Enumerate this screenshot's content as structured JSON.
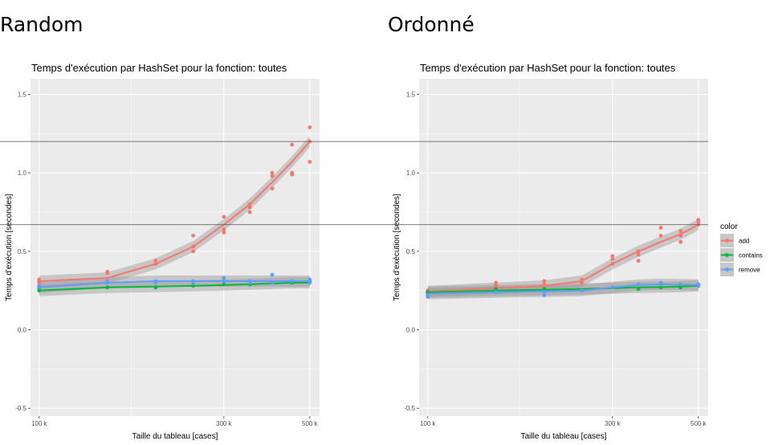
{
  "headings": {
    "left": "Random",
    "right": "Ordonné"
  },
  "colors": {
    "add": "#F8766D",
    "contains": "#00BA38",
    "remove": "#619CFF",
    "panel": "#EBEBEB",
    "grid": "#FFFFFF",
    "band": "#999999"
  },
  "legend": {
    "title": "color",
    "items": [
      {
        "key": "add",
        "label": "add"
      },
      {
        "key": "contains",
        "label": "contains"
      },
      {
        "key": "remove",
        "label": "remove"
      }
    ]
  },
  "reference_lines_y": [
    1.2,
    0.67
  ],
  "chart_data": [
    {
      "type": "scatter",
      "title": "Temps d'exécution par HashSet pour la fonction: toutes",
      "xlabel": "Taille du tableau [cases]",
      "ylabel": "Temps d'exécution [secondes]",
      "xscale": "log",
      "xlim": [
        95000,
        530000
      ],
      "ylim": [
        -0.55,
        1.6
      ],
      "xticks": [
        {
          "value": 100000,
          "label": "100 k"
        },
        {
          "value": 300000,
          "label": "300 k"
        },
        {
          "value": 500000,
          "label": "500 k"
        }
      ],
      "yticks": [
        {
          "value": -0.5,
          "label": "-0.5"
        },
        {
          "value": 0,
          "label": "0.0"
        },
        {
          "value": 0.5,
          "label": "0.5"
        },
        {
          "value": 1,
          "label": "1.0"
        },
        {
          "value": 1.5,
          "label": "1.5"
        }
      ],
      "series": [
        {
          "name": "add",
          "key": "add",
          "points": [
            [
              100000,
              0.3
            ],
            [
              100000,
              0.32
            ],
            [
              100000,
              0.31
            ],
            [
              150000,
              0.36
            ],
            [
              150000,
              0.37
            ],
            [
              200000,
              0.42
            ],
            [
              200000,
              0.44
            ],
            [
              250000,
              0.5
            ],
            [
              250000,
              0.53
            ],
            [
              250000,
              0.6
            ],
            [
              300000,
              0.62
            ],
            [
              300000,
              0.64
            ],
            [
              300000,
              0.72
            ],
            [
              350000,
              0.75
            ],
            [
              350000,
              0.78
            ],
            [
              350000,
              0.8
            ],
            [
              400000,
              0.9
            ],
            [
              400000,
              0.98
            ],
            [
              400000,
              1.0
            ],
            [
              450000,
              0.99
            ],
            [
              450000,
              1.0
            ],
            [
              450000,
              1.18
            ],
            [
              500000,
              1.07
            ],
            [
              500000,
              1.2
            ],
            [
              500000,
              1.29
            ]
          ],
          "fit": [
            [
              100000,
              0.31
            ],
            [
              150000,
              0.33
            ],
            [
              200000,
              0.42
            ],
            [
              250000,
              0.53
            ],
            [
              300000,
              0.67
            ],
            [
              350000,
              0.8
            ],
            [
              400000,
              0.94
            ],
            [
              450000,
              1.07
            ],
            [
              500000,
              1.2
            ]
          ]
        },
        {
          "name": "contains",
          "key": "contains",
          "points": [
            [
              100000,
              0.25
            ],
            [
              100000,
              0.26
            ],
            [
              150000,
              0.27
            ],
            [
              200000,
              0.27
            ],
            [
              250000,
              0.28
            ],
            [
              300000,
              0.29
            ],
            [
              350000,
              0.29
            ],
            [
              400000,
              0.3
            ],
            [
              450000,
              0.3
            ],
            [
              500000,
              0.3
            ],
            [
              500000,
              0.31
            ]
          ],
          "fit": [
            [
              100000,
              0.25
            ],
            [
              150000,
              0.27
            ],
            [
              200000,
              0.275
            ],
            [
              250000,
              0.28
            ],
            [
              300000,
              0.285
            ],
            [
              350000,
              0.29
            ],
            [
              400000,
              0.295
            ],
            [
              450000,
              0.3
            ],
            [
              500000,
              0.3
            ]
          ]
        },
        {
          "name": "remove",
          "key": "remove",
          "points": [
            [
              100000,
              0.27
            ],
            [
              100000,
              0.28
            ],
            [
              150000,
              0.3
            ],
            [
              150000,
              0.31
            ],
            [
              200000,
              0.3
            ],
            [
              200000,
              0.31
            ],
            [
              250000,
              0.3
            ],
            [
              250000,
              0.31
            ],
            [
              300000,
              0.31
            ],
            [
              300000,
              0.33
            ],
            [
              350000,
              0.31
            ],
            [
              350000,
              0.3
            ],
            [
              400000,
              0.3
            ],
            [
              400000,
              0.35
            ],
            [
              450000,
              0.31
            ],
            [
              500000,
              0.3
            ],
            [
              500000,
              0.32
            ]
          ],
          "fit": [
            [
              100000,
              0.27
            ],
            [
              150000,
              0.3
            ],
            [
              200000,
              0.31
            ],
            [
              250000,
              0.31
            ],
            [
              300000,
              0.31
            ],
            [
              350000,
              0.31
            ],
            [
              400000,
              0.31
            ],
            [
              450000,
              0.31
            ],
            [
              500000,
              0.31
            ]
          ]
        }
      ]
    },
    {
      "type": "scatter",
      "title": "Temps d'exécution par HashSet pour la fonction: toutes",
      "xlabel": "Taille du tableau [cases]",
      "ylabel": "Temps d'exécution [secondes]",
      "xscale": "log",
      "xlim": [
        95000,
        530000
      ],
      "ylim": [
        -0.55,
        1.6
      ],
      "xticks": [
        {
          "value": 100000,
          "label": "100 k"
        },
        {
          "value": 300000,
          "label": "300 k"
        },
        {
          "value": 500000,
          "label": "500 k"
        }
      ],
      "yticks": [
        {
          "value": -0.5,
          "label": "-0.5"
        },
        {
          "value": 0,
          "label": "0.0"
        },
        {
          "value": 0.5,
          "label": "0.5"
        },
        {
          "value": 1,
          "label": "1.0"
        },
        {
          "value": 1.5,
          "label": "1.5"
        }
      ],
      "series": [
        {
          "name": "add",
          "key": "add",
          "points": [
            [
              100000,
              0.24
            ],
            [
              100000,
              0.25
            ],
            [
              150000,
              0.28
            ],
            [
              150000,
              0.3
            ],
            [
              200000,
              0.29
            ],
            [
              200000,
              0.31
            ],
            [
              250000,
              0.3
            ],
            [
              250000,
              0.32
            ],
            [
              300000,
              0.42
            ],
            [
              300000,
              0.45
            ],
            [
              300000,
              0.47
            ],
            [
              350000,
              0.44
            ],
            [
              350000,
              0.48
            ],
            [
              350000,
              0.5
            ],
            [
              400000,
              0.6
            ],
            [
              400000,
              0.65
            ],
            [
              450000,
              0.56
            ],
            [
              450000,
              0.6
            ],
            [
              450000,
              0.63
            ],
            [
              500000,
              0.67
            ],
            [
              500000,
              0.69
            ],
            [
              500000,
              0.7
            ]
          ],
          "fit": [
            [
              100000,
              0.245
            ],
            [
              150000,
              0.265
            ],
            [
              200000,
              0.28
            ],
            [
              250000,
              0.31
            ],
            [
              300000,
              0.42
            ],
            [
              350000,
              0.5
            ],
            [
              400000,
              0.56
            ],
            [
              450000,
              0.61
            ],
            [
              500000,
              0.67
            ]
          ]
        },
        {
          "name": "contains",
          "key": "contains",
          "points": [
            [
              100000,
              0.23
            ],
            [
              100000,
              0.24
            ],
            [
              150000,
              0.26
            ],
            [
              200000,
              0.26
            ],
            [
              250000,
              0.25
            ],
            [
              300000,
              0.27
            ],
            [
              350000,
              0.26
            ],
            [
              400000,
              0.27
            ],
            [
              450000,
              0.27
            ],
            [
              500000,
              0.28
            ]
          ],
          "fit": [
            [
              100000,
              0.24
            ],
            [
              150000,
              0.25
            ],
            [
              200000,
              0.255
            ],
            [
              250000,
              0.26
            ],
            [
              300000,
              0.265
            ],
            [
              350000,
              0.27
            ],
            [
              400000,
              0.272
            ],
            [
              450000,
              0.275
            ],
            [
              500000,
              0.28
            ]
          ]
        },
        {
          "name": "remove",
          "key": "remove",
          "points": [
            [
              100000,
              0.21
            ],
            [
              100000,
              0.22
            ],
            [
              150000,
              0.24
            ],
            [
              200000,
              0.22
            ],
            [
              200000,
              0.24
            ],
            [
              250000,
              0.25
            ],
            [
              300000,
              0.27
            ],
            [
              350000,
              0.29
            ],
            [
              400000,
              0.3
            ],
            [
              450000,
              0.29
            ],
            [
              500000,
              0.28
            ],
            [
              500000,
              0.29
            ]
          ],
          "fit": [
            [
              100000,
              0.23
            ],
            [
              150000,
              0.24
            ],
            [
              200000,
              0.245
            ],
            [
              250000,
              0.25
            ],
            [
              300000,
              0.27
            ],
            [
              350000,
              0.285
            ],
            [
              400000,
              0.29
            ],
            [
              450000,
              0.288
            ],
            [
              500000,
              0.285
            ]
          ]
        }
      ]
    }
  ]
}
